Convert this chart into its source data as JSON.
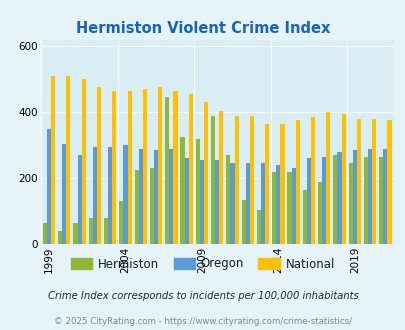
{
  "title": "Hermiston Violent Crime Index",
  "years": [
    1999,
    2000,
    2001,
    2002,
    2003,
    2004,
    2005,
    2006,
    2007,
    2008,
    2009,
    2010,
    2011,
    2012,
    2013,
    2014,
    2015,
    2016,
    2017,
    2018,
    2019,
    2020,
    2021
  ],
  "hermiston": [
    65,
    40,
    65,
    80,
    80,
    130,
    225,
    230,
    445,
    325,
    320,
    390,
    270,
    135,
    105,
    220,
    220,
    165,
    190,
    270,
    245,
    265,
    265
  ],
  "oregon": [
    350,
    305,
    270,
    295,
    295,
    300,
    290,
    285,
    290,
    260,
    255,
    255,
    245,
    245,
    245,
    240,
    230,
    260,
    265,
    280,
    285,
    290,
    290
  ],
  "national": [
    510,
    510,
    500,
    475,
    465,
    465,
    470,
    475,
    465,
    455,
    430,
    405,
    390,
    390,
    365,
    365,
    375,
    385,
    400,
    395,
    380,
    380,
    375
  ],
  "hermiston_color": "#8db83a",
  "oregon_color": "#5b9bd5",
  "national_color": "#ffc000",
  "bg_color": "#e6f3f8",
  "plot_bg": "#d8edf4",
  "title_color": "#1565c0",
  "subtitle": "Crime Index corresponds to incidents per 100,000 inhabitants",
  "footer": "© 2025 CityRating.com - https://www.cityrating.com/crime-statistics/",
  "ylim": [
    0,
    620
  ],
  "yticks": [
    0,
    200,
    400,
    600
  ],
  "xtick_years": [
    1999,
    2004,
    2009,
    2014,
    2019
  ]
}
